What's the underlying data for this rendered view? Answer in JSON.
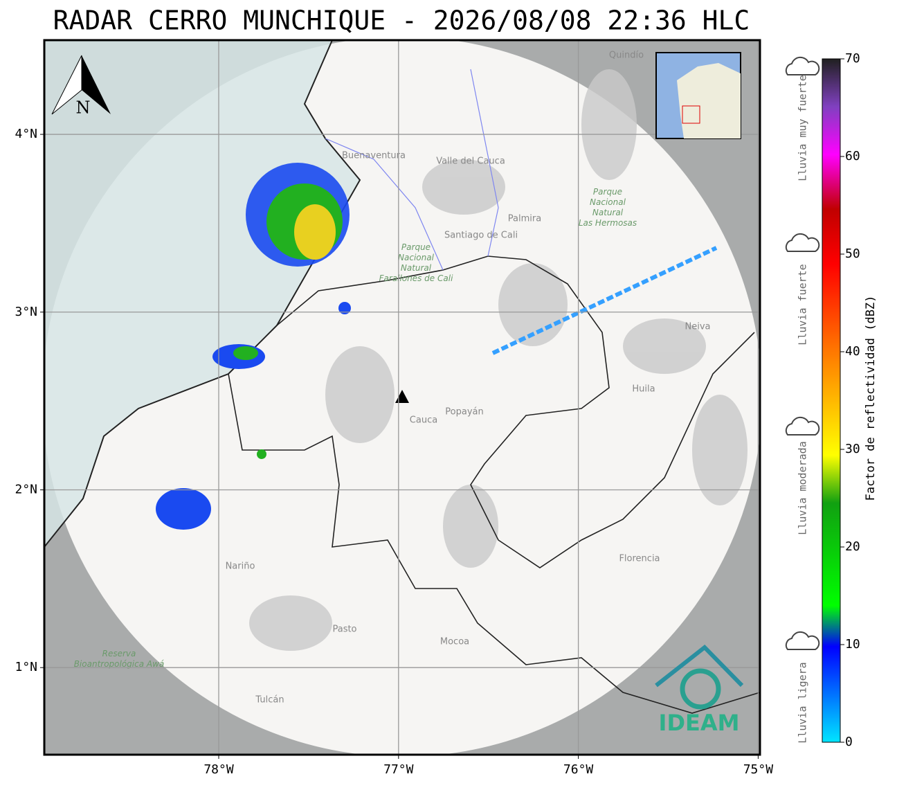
{
  "title": "RADAR CERRO MUNCHIQUE - 2026/08/08 22:36 HLC",
  "map": {
    "xlim": [
      -78.97,
      -74.99
    ],
    "ylim": [
      0.51,
      4.53
    ],
    "xticks": [
      {
        "value": -78,
        "label": "78°W"
      },
      {
        "value": -77,
        "label": "77°W"
      },
      {
        "value": -76,
        "label": "76°W"
      },
      {
        "value": -75,
        "label": "75°W"
      }
    ],
    "yticks": [
      {
        "value": 1,
        "label": "1°N"
      },
      {
        "value": 2,
        "label": "2°N"
      },
      {
        "value": 3,
        "label": "3°N"
      },
      {
        "value": 4,
        "label": "4°N"
      }
    ],
    "north": "N",
    "places": [
      "Quindío",
      "Buenaventura",
      "Valle del Cauca",
      "Palmira",
      "Santiago de Cali",
      "Parque Nacional Natural Farallones de Cali",
      "Parque Nacional Natural Las Hermosas",
      "Neiva",
      "Huila",
      "Cauca",
      "Popayán",
      "Nariño",
      "Florencia",
      "Pasto",
      "Mocoa",
      "Tulcán",
      "Reserva Bioantropológica Awá"
    ],
    "logo": "IDEAM"
  },
  "colorbar": {
    "label": "Factor de reflectividad (dBZ)",
    "ticks": [
      0,
      10,
      20,
      30,
      40,
      50,
      60,
      70
    ]
  },
  "legend": [
    "Lluvia muy fuerte",
    "Lluvia fuerte",
    "Lluvia moderada",
    "Lluvia ligera"
  ]
}
